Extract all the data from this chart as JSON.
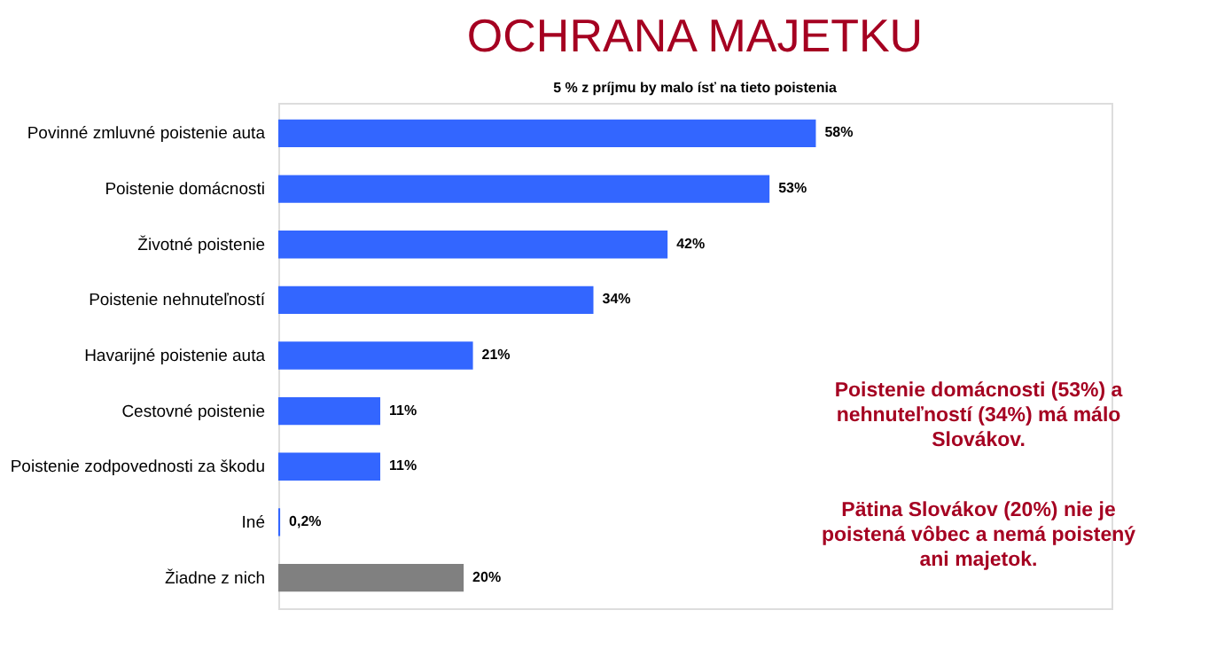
{
  "chart_data": {
    "type": "bar",
    "orientation": "horizontal",
    "title": "OCHRANA MAJETKU",
    "subtitle": "5 % z príjmu by malo ísť na tieto poistenia",
    "categories": [
      "Povinné zmluvné poistenie auta",
      "Poistenie domácnosti",
      "Životné poistenie",
      "Poistenie nehnuteľností",
      "Havarijné poistenie auta",
      "Cestovné poistenie",
      "Poistenie zodpovednosti za škodu",
      "Iné",
      "Žiadne z nich"
    ],
    "values": [
      58,
      53,
      42,
      34,
      21,
      11,
      11,
      0.2,
      20
    ],
    "value_labels": [
      "58%",
      "53%",
      "42%",
      "34%",
      "21%",
      "11%",
      "11%",
      "0,2%",
      "20%"
    ],
    "colors": [
      "#3366ff",
      "#3366ff",
      "#3366ff",
      "#3366ff",
      "#3366ff",
      "#3366ff",
      "#3366ff",
      "#3366ff",
      "#808080"
    ],
    "annotations": [
      "Poistenie domácnosti (53%) a nehnuteľností (34%) má málo Slovákov.",
      "Pätina Slovákov (20%) nie je poistená vôbec a nemá poistený ani majetok."
    ]
  }
}
